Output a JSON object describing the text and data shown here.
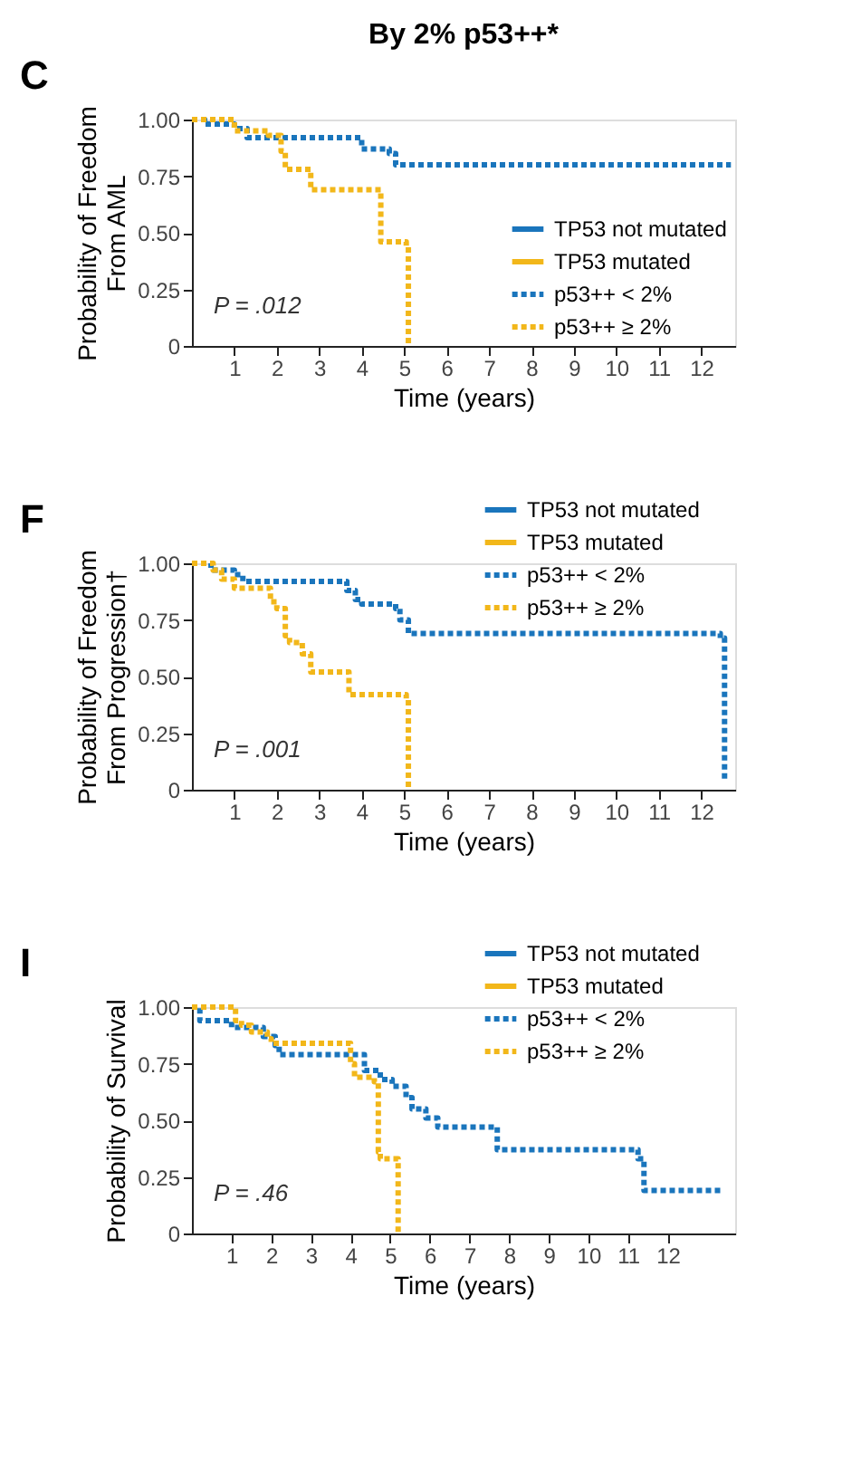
{
  "chart_data": [
    {
      "type": "step",
      "title": "By 2% p53++*",
      "xlabel": "Time (years)",
      "ylabel": "Probability of Freedom\nFrom AML",
      "annotations": [
        "C",
        "P = .012"
      ],
      "xlim": [
        0,
        12.8
      ],
      "xticks": [
        1,
        2,
        3,
        4,
        5,
        6,
        7,
        8,
        9,
        10,
        11,
        12
      ],
      "ylim": [
        0,
        1
      ],
      "yticks": [
        {
          "value": 0,
          "label": "0"
        },
        {
          "value": 0.25,
          "label": "0.25"
        },
        {
          "value": 0.5,
          "label": "0.50"
        },
        {
          "value": 0.75,
          "label": "0.75"
        },
        {
          "value": 1,
          "label": "1.00"
        }
      ],
      "grid": false,
      "legend": "bottom right",
      "marker": "none",
      "series": [
        {
          "name": "TP53 not mutated",
          "color": "#1a75bc",
          "line_style": "solid"
        },
        {
          "name": "TP53 mutated",
          "color": "#f2b71a",
          "line_style": "solid"
        },
        {
          "name": "p53++ < 2%",
          "color": "#1a75bc",
          "line_style": "dotted",
          "x": [
            0,
            0.3,
            1.0,
            1.3,
            4.0,
            4.65,
            4.8,
            12.7
          ],
          "values": [
            1,
            0.98,
            0.96,
            0.92,
            0.87,
            0.85,
            0.8,
            0.8
          ]
        },
        {
          "name": "p53++ ≥ 2%",
          "color": "#f2b71a",
          "line_style": "dotted",
          "x": [
            0,
            1.0,
            1.8,
            2.1,
            2.2,
            2.8,
            4.45,
            5.05,
            5.1
          ],
          "values": [
            1,
            0.95,
            0.93,
            0.86,
            0.78,
            0.69,
            0.46,
            0.44,
            0
          ]
        }
      ]
    },
    {
      "type": "step",
      "xlabel": "Time (years)",
      "ylabel": "Probability of Freedom\nFrom Progression†",
      "annotations": [
        "F",
        "P = .001"
      ],
      "xlim": [
        0,
        12.8
      ],
      "xticks": [
        1,
        2,
        3,
        4,
        5,
        6,
        7,
        8,
        9,
        10,
        11,
        12
      ],
      "ylim": [
        0,
        1
      ],
      "yticks": [
        {
          "value": 0,
          "label": "0"
        },
        {
          "value": 0.25,
          "label": "0.25"
        },
        {
          "value": 0.5,
          "label": "0.50"
        },
        {
          "value": 0.75,
          "label": "0.75"
        },
        {
          "value": 1,
          "label": "1.00"
        }
      ],
      "grid": false,
      "legend": "top right",
      "marker": "none",
      "series": [
        {
          "name": "TP53 not mutated",
          "color": "#1a75bc",
          "line_style": "solid"
        },
        {
          "name": "TP53 mutated",
          "color": "#f2b71a",
          "line_style": "solid"
        },
        {
          "name": "p53++ < 2%",
          "color": "#1a75bc",
          "line_style": "dotted",
          "x": [
            0,
            0.45,
            1.0,
            1.2,
            3.65,
            3.85,
            4.0,
            4.8,
            4.9,
            5.1,
            12.45,
            12.55
          ],
          "values": [
            1,
            0.97,
            0.95,
            0.92,
            0.88,
            0.84,
            0.82,
            0.8,
            0.75,
            0.69,
            0.67,
            0.04
          ]
        },
        {
          "name": "p53++ ≥ 2%",
          "color": "#f2b71a",
          "line_style": "dotted",
          "x": [
            0,
            0.5,
            0.7,
            1.0,
            1.85,
            2.0,
            2.2,
            2.3,
            2.6,
            2.8,
            3.7,
            5.05,
            5.1
          ],
          "values": [
            1,
            0.97,
            0.93,
            0.89,
            0.83,
            0.8,
            0.68,
            0.65,
            0.6,
            0.52,
            0.42,
            0.4,
            0
          ]
        }
      ]
    },
    {
      "type": "step",
      "xlabel": "Time (years)",
      "ylabel": "Probability of Survival",
      "annotations": [
        "I",
        "P = .46"
      ],
      "xlim": [
        0,
        13.7
      ],
      "xticks": [
        1,
        2,
        3,
        4,
        5,
        6,
        7,
        8,
        9,
        10,
        11,
        12
      ],
      "ylim": [
        0,
        1
      ],
      "yticks": [
        {
          "value": 0,
          "label": "0"
        },
        {
          "value": 0.25,
          "label": "0.25"
        },
        {
          "value": 0.5,
          "label": "0.50"
        },
        {
          "value": 0.75,
          "label": "0.75"
        },
        {
          "value": 1,
          "label": "1.00"
        }
      ],
      "grid": false,
      "legend": "top right",
      "marker": "none",
      "series": [
        {
          "name": "TP53 not mutated",
          "color": "#1a75bc",
          "line_style": "solid"
        },
        {
          "name": "TP53 mutated",
          "color": "#f2b71a",
          "line_style": "solid"
        },
        {
          "name": "p53++ < 2%",
          "color": "#1a75bc",
          "line_style": "dotted",
          "x": [
            0,
            0.2,
            1.0,
            1.8,
            2.1,
            2.2,
            4.35,
            4.75,
            5.05,
            5.4,
            5.55,
            5.9,
            6.2,
            7.7,
            11.25,
            11.4,
            13.4
          ],
          "values": [
            1,
            0.94,
            0.91,
            0.87,
            0.83,
            0.79,
            0.72,
            0.68,
            0.65,
            0.6,
            0.55,
            0.51,
            0.47,
            0.37,
            0.33,
            0.19,
            0.19
          ]
        },
        {
          "name": "p53++ ≥ 2%",
          "color": "#f2b71a",
          "line_style": "dotted",
          "x": [
            0,
            1.1,
            1.25,
            1.5,
            1.9,
            2.0,
            4.0,
            4.1,
            4.6,
            4.7,
            4.75,
            5.2
          ],
          "values": [
            1,
            0.94,
            0.92,
            0.89,
            0.86,
            0.84,
            0.75,
            0.69,
            0.67,
            0.36,
            0.33,
            0
          ]
        }
      ]
    }
  ]
}
